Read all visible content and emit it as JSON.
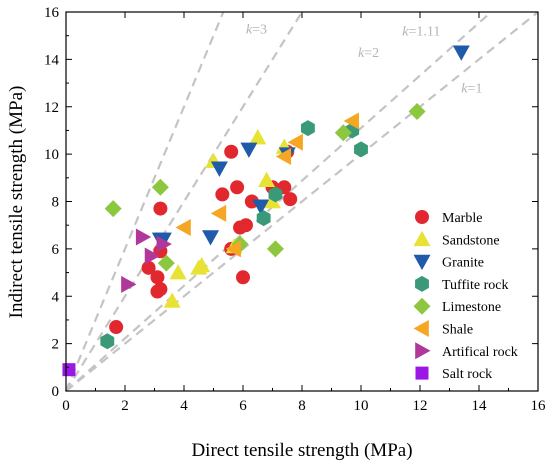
{
  "chart_data": {
    "type": "scatter",
    "xlabel": "Direct tensile strength (MPa)",
    "ylabel": "Indirect tensile strength (MPa)",
    "xlim": [
      0,
      16
    ],
    "ylim": [
      0,
      16
    ],
    "xticks": [
      0,
      2,
      4,
      6,
      8,
      10,
      12,
      14,
      16
    ],
    "yticks": [
      0,
      2,
      4,
      6,
      8,
      10,
      12,
      14,
      16
    ],
    "grid": false,
    "legend_position": "center-right",
    "reference_lines": [
      {
        "label": "k=3",
        "k_display": "k",
        "value_display": "=3",
        "slope": 3,
        "label_at": [
          6.1,
          15.1
        ]
      },
      {
        "label": "k=2",
        "k_display": "k",
        "value_display": "=2",
        "slope": 2,
        "label_at": [
          9.9,
          14.1
        ]
      },
      {
        "label": "k=1.11",
        "k_display": "k",
        "value_display": "=1.11",
        "slope": 1.11,
        "label_at": [
          11.4,
          15.0
        ]
      },
      {
        "label": "k=1",
        "k_display": "k",
        "value_display": "=1",
        "slope": 1,
        "label_at": [
          13.4,
          12.6
        ]
      }
    ],
    "series": [
      {
        "name": "Marble",
        "marker": "circle",
        "color": "#e0282e",
        "points": [
          [
            1.7,
            2.7
          ],
          [
            2.8,
            5.2
          ],
          [
            3.1,
            4.2
          ],
          [
            3.1,
            4.8
          ],
          [
            3.2,
            5.9
          ],
          [
            3.2,
            4.3
          ],
          [
            3.2,
            7.7
          ],
          [
            5.3,
            8.3
          ],
          [
            5.6,
            10.1
          ],
          [
            5.8,
            8.6
          ],
          [
            5.9,
            6.9
          ],
          [
            6.0,
            4.8
          ],
          [
            6.1,
            7.0
          ],
          [
            6.3,
            8.0
          ],
          [
            7.0,
            8.6
          ],
          [
            7.4,
            8.6
          ],
          [
            7.5,
            10.1
          ],
          [
            7.6,
            8.1
          ],
          [
            5.6,
            6.0
          ]
        ]
      },
      {
        "name": "Sandstone",
        "marker": "triangle-up",
        "color": "#e8e234",
        "points": [
          [
            3.6,
            3.8
          ],
          [
            3.8,
            5.0
          ],
          [
            4.5,
            5.2
          ],
          [
            4.6,
            5.3
          ],
          [
            5.0,
            9.7
          ],
          [
            5.7,
            6.1
          ],
          [
            6.5,
            10.7
          ],
          [
            6.8,
            8.9
          ],
          [
            7.0,
            8.0
          ],
          [
            7.4,
            10.3
          ]
        ]
      },
      {
        "name": "Granite",
        "marker": "triangle-down",
        "color": "#1f5ba8",
        "points": [
          [
            3.2,
            6.4
          ],
          [
            3.3,
            6.4
          ],
          [
            4.9,
            6.5
          ],
          [
            5.2,
            9.4
          ],
          [
            6.2,
            10.2
          ],
          [
            6.6,
            7.8
          ],
          [
            7.5,
            10.0
          ],
          [
            13.4,
            14.3
          ]
        ]
      },
      {
        "name": "Tuffite rock",
        "marker": "hexagon",
        "color": "#3a9a78",
        "points": [
          [
            1.4,
            2.1
          ],
          [
            6.7,
            7.3
          ],
          [
            7.1,
            8.3
          ],
          [
            8.2,
            11.1
          ],
          [
            9.7,
            11.0
          ],
          [
            10.0,
            10.2
          ]
        ]
      },
      {
        "name": "Limestone",
        "marker": "diamond",
        "color": "#8dc63f",
        "points": [
          [
            1.6,
            7.7
          ],
          [
            3.2,
            8.6
          ],
          [
            3.4,
            5.4
          ],
          [
            5.9,
            6.2
          ],
          [
            7.1,
            6.0
          ],
          [
            9.4,
            10.9
          ],
          [
            11.9,
            11.8
          ]
        ]
      },
      {
        "name": "Shale",
        "marker": "triangle-left",
        "color": "#f5a623",
        "points": [
          [
            4.0,
            6.9
          ],
          [
            5.2,
            7.5
          ],
          [
            5.7,
            6.0
          ],
          [
            7.4,
            9.9
          ],
          [
            7.8,
            10.5
          ],
          [
            9.7,
            11.4
          ]
        ]
      },
      {
        "name": "Artifical rock",
        "marker": "triangle-right",
        "color": "#b0389a",
        "points": [
          [
            2.1,
            4.5
          ],
          [
            2.6,
            6.5
          ],
          [
            2.9,
            5.7
          ],
          [
            3.3,
            6.2
          ]
        ]
      },
      {
        "name": "Salt rock",
        "marker": "square",
        "color": "#9b17e6",
        "points": [
          [
            0.1,
            0.9
          ]
        ]
      }
    ]
  }
}
